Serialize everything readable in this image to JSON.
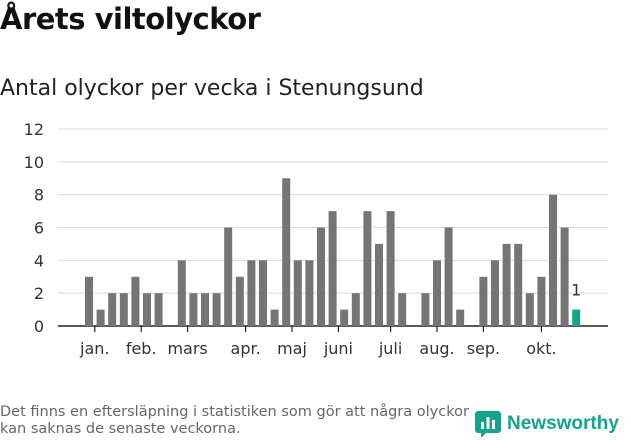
{
  "header": {
    "title": "Årets viltolyckor",
    "subtitle": "Antal olyckor per vecka i Stenungsund"
  },
  "footer": {
    "note": "Det finns en eftersläpning i statistiken som gör att några olyckor kan saknas de senaste veckorna.",
    "brand": "Newsworthy"
  },
  "colors": {
    "bar": "#757575",
    "highlight": "#14a38b",
    "brand": "#14a38b",
    "grid": "#d9d9d9"
  },
  "chart_data": {
    "type": "bar",
    "title": "Antal olyckor per vecka i Stenungsund",
    "xlabel": "",
    "ylabel": "",
    "ylim": [
      0,
      12
    ],
    "yticks": [
      0,
      2,
      4,
      6,
      8,
      10,
      12
    ],
    "grid": true,
    "x": [
      1,
      2,
      3,
      4,
      5,
      6,
      7,
      8,
      9,
      10,
      11,
      12,
      13,
      14,
      15,
      16,
      17,
      18,
      19,
      20,
      21,
      22,
      23,
      24,
      25,
      26,
      27,
      28,
      29,
      30,
      31,
      32,
      33,
      34,
      35,
      36,
      37,
      38,
      39,
      40,
      41,
      42,
      43
    ],
    "values": [
      3,
      1,
      2,
      2,
      3,
      2,
      2,
      0,
      4,
      2,
      2,
      2,
      6,
      3,
      4,
      4,
      1,
      9,
      4,
      4,
      6,
      7,
      1,
      2,
      7,
      5,
      7,
      2,
      0,
      2,
      4,
      6,
      1,
      0,
      3,
      4,
      5,
      5,
      2,
      3,
      8,
      6,
      1
    ],
    "highlight_last": true,
    "last_label": "1",
    "month_labels": [
      {
        "label": "jan.",
        "at": 1.5
      },
      {
        "label": "feb.",
        "at": 5.5
      },
      {
        "label": "mars",
        "at": 9.5
      },
      {
        "label": "apr.",
        "at": 14.5
      },
      {
        "label": "maj",
        "at": 18.5
      },
      {
        "label": "juni",
        "at": 22.5
      },
      {
        "label": "juli",
        "at": 27
      },
      {
        "label": "aug.",
        "at": 31
      },
      {
        "label": "sep.",
        "at": 35
      },
      {
        "label": "okt.",
        "at": 40
      }
    ]
  }
}
